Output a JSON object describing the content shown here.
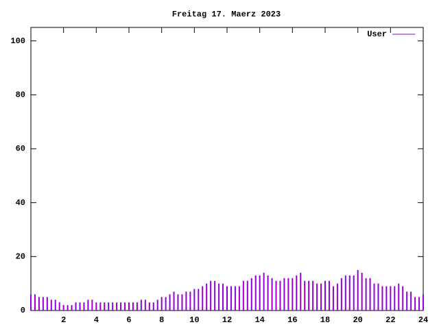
{
  "chart_data": {
    "type": "impulses",
    "title": "Freitag 17. Maerz 2023",
    "x": [
      0,
      0.25,
      0.5,
      0.75,
      1,
      1.25,
      1.5,
      1.75,
      2,
      2.25,
      2.5,
      2.75,
      3,
      3.25,
      3.5,
      3.75,
      4,
      4.25,
      4.5,
      4.75,
      5,
      5.25,
      5.5,
      5.75,
      6,
      6.25,
      6.5,
      6.75,
      7,
      7.25,
      7.5,
      7.75,
      8,
      8.25,
      8.5,
      8.75,
      9,
      9.25,
      9.5,
      9.75,
      10,
      10.25,
      10.5,
      10.75,
      11,
      11.25,
      11.5,
      11.75,
      12,
      12.25,
      12.5,
      12.75,
      13,
      13.25,
      13.5,
      13.75,
      14,
      14.25,
      14.5,
      14.75,
      15,
      15.25,
      15.5,
      15.75,
      16,
      16.25,
      16.5,
      16.75,
      17,
      17.25,
      17.5,
      17.75,
      18,
      18.25,
      18.5,
      18.75,
      19,
      19.25,
      19.5,
      19.75,
      20,
      20.25,
      20.5,
      20.75,
      21,
      21.25,
      21.5,
      21.75,
      22,
      22.25,
      22.5,
      22.75,
      23,
      23.25,
      23.5,
      23.75,
      24
    ],
    "series": [
      {
        "name": "User",
        "color": "#9400d3",
        "values": [
          6,
          6,
          5,
          5,
          5,
          4,
          4,
          3,
          2,
          2,
          2,
          3,
          3,
          3,
          4,
          4,
          3,
          3,
          3,
          3,
          3,
          3,
          3,
          3,
          3,
          3,
          3,
          4,
          4,
          3,
          3,
          4,
          5,
          5,
          6,
          7,
          6,
          6,
          7,
          7,
          8,
          8,
          9,
          10,
          11,
          11,
          10,
          10,
          9,
          9,
          9,
          9,
          11,
          11,
          12,
          13,
          13,
          14,
          13,
          12,
          11,
          11,
          12,
          12,
          12,
          13,
          14,
          11,
          11,
          11,
          10,
          10,
          11,
          11,
          9,
          10,
          12,
          13,
          13,
          13,
          15,
          14,
          12,
          12,
          10,
          10,
          9,
          9,
          9,
          9,
          10,
          9,
          7,
          7,
          5,
          5,
          6
        ]
      }
    ],
    "xlim": [
      0,
      24
    ],
    "ylim": [
      0,
      105
    ],
    "xticks": [
      2,
      4,
      6,
      8,
      10,
      12,
      14,
      16,
      18,
      20,
      22,
      24
    ],
    "yticks": [
      0,
      20,
      40,
      60,
      80,
      100
    ],
    "legend": "top-right"
  }
}
